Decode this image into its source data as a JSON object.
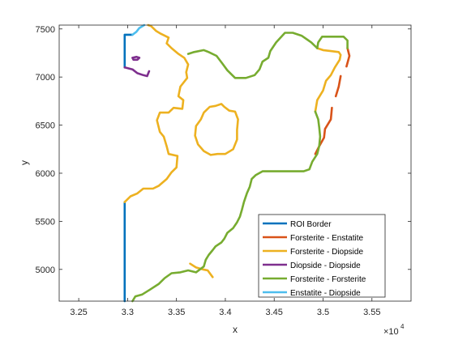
{
  "chart_data": {
    "type": "line",
    "title": "",
    "xlabel": "x",
    "ylabel": "y",
    "xlim": [
      32300,
      35900
    ],
    "ylim": [
      4670,
      7540
    ],
    "x_axis_exponent": "×10",
    "x_axis_exponent_power": "4",
    "xticks": [
      32500,
      33000,
      33500,
      34000,
      34500,
      35000,
      35500
    ],
    "xtick_labels": [
      "3.25",
      "3.3",
      "3.35",
      "3.4",
      "3.45",
      "3.5",
      "3.55"
    ],
    "yticks": [
      5000,
      5500,
      6000,
      6500,
      7000,
      7500
    ],
    "ytick_labels": [
      "5000",
      "5500",
      "6000",
      "6500",
      "7000",
      "7500"
    ],
    "grid": false,
    "legend_position": "bottom-right",
    "series": [
      {
        "name": "ROI Border",
        "color": "#0072BD",
        "segments": [
          [
            [
              32970,
              4670
            ],
            [
              32970,
              5700
            ]
          ],
          [
            [
              32970,
              7100
            ],
            [
              32970,
              7440
            ],
            [
              33050,
              7440
            ]
          ]
        ]
      },
      {
        "name": "Forsterite - Enstatite",
        "color": "#D95319",
        "segments": [
          [
            [
              35250,
              7300
            ],
            [
              35270,
              7220
            ],
            [
              35240,
              7110
            ]
          ],
          [
            [
              35180,
              7010
            ],
            [
              35160,
              6900
            ],
            [
              35130,
              6800
            ]
          ],
          [
            [
              35090,
              6680
            ],
            [
              35080,
              6560
            ],
            [
              35020,
              6460
            ],
            [
              35010,
              6370
            ],
            [
              34960,
              6280
            ],
            [
              34920,
              6200
            ]
          ]
        ]
      },
      {
        "name": "Forsterite - Diopside",
        "color": "#EDB120",
        "segments": [
          [
            [
              32970,
              5700
            ],
            [
              33030,
              5760
            ],
            [
              33100,
              5790
            ],
            [
              33160,
              5840
            ],
            [
              33260,
              5840
            ],
            [
              33320,
              5870
            ],
            [
              33400,
              5940
            ],
            [
              33450,
              6010
            ],
            [
              33500,
              6060
            ],
            [
              33510,
              6180
            ],
            [
              33420,
              6200
            ],
            [
              33400,
              6280
            ],
            [
              33370,
              6380
            ],
            [
              33330,
              6430
            ],
            [
              33300,
              6550
            ],
            [
              33330,
              6630
            ],
            [
              33420,
              6630
            ],
            [
              33470,
              6680
            ],
            [
              33560,
              6670
            ],
            [
              33570,
              6760
            ],
            [
              33520,
              6800
            ],
            [
              33540,
              6900
            ],
            [
              33610,
              6990
            ],
            [
              33600,
              7050
            ],
            [
              33620,
              7130
            ],
            [
              33580,
              7200
            ],
            [
              33520,
              7240
            ],
            [
              33450,
              7300
            ],
            [
              33400,
              7350
            ],
            [
              33420,
              7410
            ],
            [
              33340,
              7450
            ],
            [
              33290,
              7480
            ],
            [
              33240,
              7530
            ],
            [
              33210,
              7540
            ]
          ],
          [
            [
              33900,
              6700
            ],
            [
              33960,
              6720
            ],
            [
              33990,
              6690
            ],
            [
              34040,
              6650
            ],
            [
              34100,
              6640
            ],
            [
              34130,
              6560
            ],
            [
              34120,
              6450
            ],
            [
              34120,
              6350
            ],
            [
              34080,
              6250
            ],
            [
              34000,
              6200
            ],
            [
              33920,
              6200
            ],
            [
              33850,
              6190
            ],
            [
              33780,
              6230
            ],
            [
              33720,
              6300
            ],
            [
              33690,
              6390
            ],
            [
              33700,
              6490
            ],
            [
              33750,
              6560
            ],
            [
              33780,
              6630
            ],
            [
              33840,
              6690
            ],
            [
              33900,
              6700
            ]
          ],
          [
            [
              34920,
              6640
            ],
            [
              34940,
              6760
            ],
            [
              35000,
              6860
            ],
            [
              35030,
              6960
            ],
            [
              35080,
              7020
            ],
            [
              35120,
              7100
            ],
            [
              35170,
              7180
            ],
            [
              35180,
              7230
            ],
            [
              35160,
              7260
            ],
            [
              35080,
              7270
            ],
            [
              35000,
              7280
            ],
            [
              34940,
              7300
            ]
          ],
          [
            [
              33640,
              5060
            ],
            [
              33700,
              5020
            ],
            [
              33770,
              5000
            ],
            [
              33820,
              4990
            ],
            [
              33870,
              4920
            ]
          ]
        ]
      },
      {
        "name": "Diopside - Diopside",
        "color": "#7E2F8E",
        "segments": [
          [
            [
              32970,
              7100
            ],
            [
              33050,
              7080
            ],
            [
              33100,
              7040
            ],
            [
              33160,
              7020
            ],
            [
              33200,
              7010
            ],
            [
              33220,
              7060
            ]
          ],
          [
            [
              33050,
              7200
            ],
            [
              33090,
              7210
            ],
            [
              33120,
              7200
            ],
            [
              33100,
              7180
            ],
            [
              33060,
              7180
            ],
            [
              33050,
              7200
            ]
          ]
        ]
      },
      {
        "name": "Forsterite - Forsterite",
        "color": "#77AC30",
        "segments": [
          [
            [
              33050,
              4670
            ],
            [
              33080,
              4720
            ],
            [
              33150,
              4740
            ],
            [
              33230,
              4790
            ],
            [
              33320,
              4850
            ],
            [
              33380,
              4910
            ],
            [
              33450,
              4960
            ],
            [
              33540,
              4970
            ],
            [
              33620,
              4990
            ],
            [
              33700,
              4970
            ],
            [
              33780,
              5030
            ],
            [
              33800,
              5100
            ],
            [
              33830,
              5150
            ],
            [
              33870,
              5200
            ],
            [
              33900,
              5240
            ],
            [
              33960,
              5280
            ],
            [
              33990,
              5320
            ],
            [
              34020,
              5380
            ],
            [
              34080,
              5430
            ],
            [
              34120,
              5490
            ],
            [
              34150,
              5550
            ],
            [
              34170,
              5620
            ],
            [
              34190,
              5700
            ],
            [
              34220,
              5790
            ],
            [
              34250,
              5860
            ],
            [
              34270,
              5940
            ],
            [
              34310,
              5980
            ],
            [
              34380,
              6020
            ],
            [
              34500,
              6020
            ],
            [
              34600,
              6020
            ],
            [
              34700,
              6020
            ],
            [
              34800,
              6020
            ],
            [
              34860,
              6040
            ],
            [
              34890,
              6120
            ],
            [
              34940,
              6200
            ],
            [
              34960,
              6280
            ],
            [
              34970,
              6380
            ],
            [
              34960,
              6480
            ],
            [
              34950,
              6560
            ],
            [
              34920,
              6640
            ]
          ],
          [
            [
              34940,
              7300
            ],
            [
              34950,
              7360
            ],
            [
              34990,
              7420
            ],
            [
              35100,
              7420
            ],
            [
              35210,
              7420
            ],
            [
              35250,
              7380
            ],
            [
              35250,
              7300
            ]
          ],
          [
            [
              34940,
              7300
            ],
            [
              34880,
              7360
            ],
            [
              34780,
              7430
            ],
            [
              34690,
              7460
            ],
            [
              34610,
              7460
            ],
            [
              34520,
              7360
            ],
            [
              34460,
              7270
            ],
            [
              34440,
              7200
            ],
            [
              34380,
              7160
            ],
            [
              34350,
              7080
            ],
            [
              34300,
              7020
            ],
            [
              34210,
              6990
            ],
            [
              34180,
              6990
            ],
            [
              34100,
              6990
            ],
            [
              34020,
              7070
            ],
            [
              33970,
              7140
            ],
            [
              33910,
              7220
            ],
            [
              33830,
              7260
            ],
            [
              33780,
              7280
            ],
            [
              33680,
              7260
            ],
            [
              33620,
              7240
            ]
          ]
        ]
      },
      {
        "name": "Enstatite - Diopside",
        "color": "#4DBEEE",
        "segments": [
          [
            [
              33050,
              7440
            ],
            [
              33090,
              7470
            ],
            [
              33120,
              7510
            ],
            [
              33170,
              7540
            ]
          ]
        ]
      }
    ]
  }
}
